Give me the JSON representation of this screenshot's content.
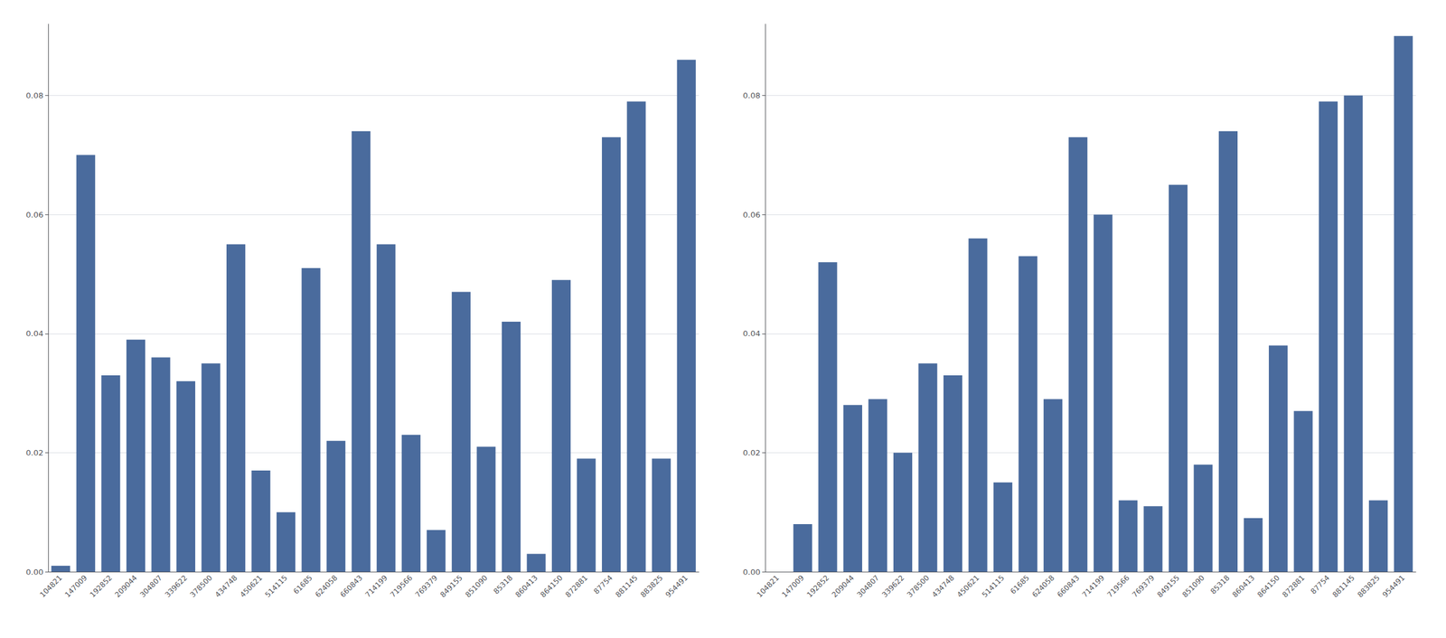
{
  "chart_data": [
    {
      "type": "bar",
      "categories": [
        "104821",
        "147009",
        "192852",
        "209044",
        "304807",
        "339622",
        "378500",
        "434748",
        "450621",
        "514115",
        "61685",
        "624058",
        "660843",
        "714199",
        "719566",
        "769379",
        "849155",
        "851090",
        "85318",
        "860413",
        "864150",
        "872881",
        "87754",
        "881145",
        "883825",
        "954491"
      ],
      "values": [
        0.001,
        0.07,
        0.033,
        0.039,
        0.036,
        0.032,
        0.035,
        0.055,
        0.017,
        0.01,
        0.051,
        0.022,
        0.074,
        0.055,
        0.023,
        0.007,
        0.047,
        0.021,
        0.042,
        0.003,
        0.049,
        0.019,
        0.073,
        0.079,
        0.019,
        0.086
      ],
      "color": "#4a6b9d",
      "ylim": [
        0.0,
        0.092
      ],
      "yticks": [
        {
          "value": 0.0,
          "label": "0.00"
        },
        {
          "value": 0.02,
          "label": "0.02"
        },
        {
          "value": 0.04,
          "label": "0.04"
        },
        {
          "value": 0.06,
          "label": "0.06"
        },
        {
          "value": 0.08,
          "label": "0.08"
        }
      ],
      "grid": true
    },
    {
      "type": "bar",
      "categories": [
        "104821",
        "147009",
        "192852",
        "209044",
        "304807",
        "339622",
        "378500",
        "434748",
        "450621",
        "514115",
        "61685",
        "624058",
        "660843",
        "714199",
        "719566",
        "769379",
        "849155",
        "851090",
        "85318",
        "860413",
        "864150",
        "872881",
        "87754",
        "881145",
        "883825",
        "954491"
      ],
      "values": [
        0.0,
        0.008,
        0.052,
        0.028,
        0.029,
        0.02,
        0.035,
        0.033,
        0.056,
        0.015,
        0.053,
        0.029,
        0.073,
        0.06,
        0.012,
        0.011,
        0.065,
        0.018,
        0.074,
        0.009,
        0.038,
        0.027,
        0.079,
        0.08,
        0.012,
        0.09
      ],
      "color": "#4a6b9d",
      "ylim": [
        0.0,
        0.092
      ],
      "yticks": [
        {
          "value": 0.0,
          "label": "0.00"
        },
        {
          "value": 0.02,
          "label": "0.02"
        },
        {
          "value": 0.04,
          "label": "0.04"
        },
        {
          "value": 0.06,
          "label": "0.06"
        },
        {
          "value": 0.08,
          "label": "0.08"
        }
      ],
      "grid": true
    }
  ]
}
